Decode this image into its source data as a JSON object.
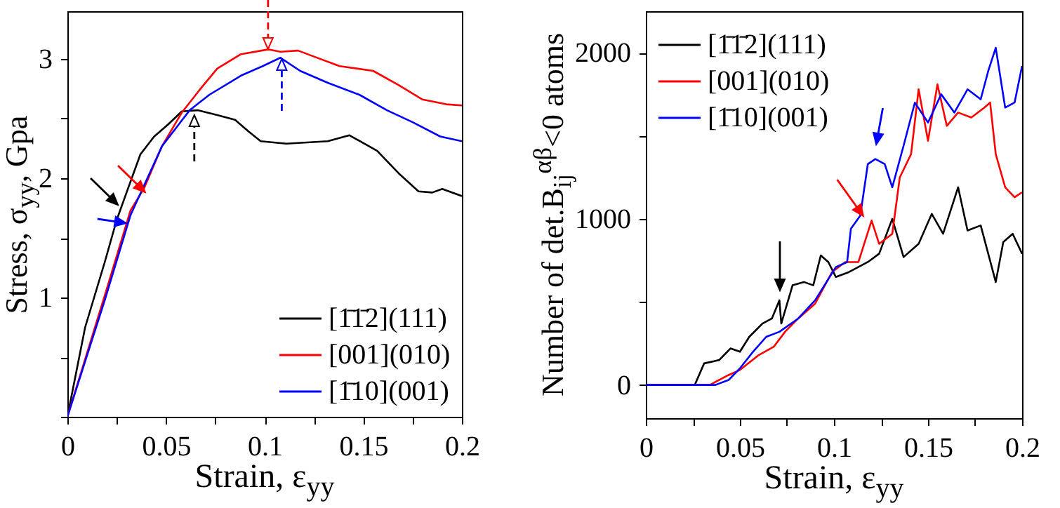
{
  "chart_data": [
    {
      "type": "line",
      "xlabel": "Strain, ε$_{yy}$",
      "ylabel": "Stress, σ$_{yy}$, Gpa",
      "xlim": [
        0,
        0.2
      ],
      "ylim": [
        0,
        3.4
      ],
      "xticks": [
        0,
        {
          "value": 0.025,
          "label": null
        },
        0.05,
        {
          "value": 0.075,
          "label": null
        },
        0.1,
        {
          "value": 0.125,
          "label": null
        },
        0.15,
        {
          "value": 0.175,
          "label": null
        },
        0.2
      ],
      "yticks": [
        {
          "value": 0,
          "label": null
        },
        {
          "value": 0.5,
          "label": null
        },
        1,
        {
          "value": 1.5,
          "label": null
        },
        2,
        {
          "value": 2.5,
          "label": null
        },
        3
      ],
      "grid": false,
      "legend": "bottom right",
      "marker": "none",
      "line_style": "solid",
      "series": [
        {
          "name": "[1̄1̄2](111)",
          "color": "#000000",
          "x": [
            0,
            0.009,
            0.019,
            0.025,
            0.03,
            0.037,
            0.044,
            0.051,
            0.058,
            0.066,
            0.076,
            0.085,
            0.092,
            0.098,
            0.111,
            0.132,
            0.143,
            0.157,
            0.168,
            0.178,
            0.185,
            0.19,
            0.2
          ],
          "values": [
            0,
            0.75,
            1.3,
            1.65,
            1.88,
            2.2,
            2.35,
            2.45,
            2.56,
            2.57,
            2.53,
            2.49,
            2.39,
            2.31,
            2.29,
            2.31,
            2.36,
            2.23,
            2.04,
            1.89,
            1.88,
            1.91,
            1.85
          ]
        },
        {
          "name": "[001](010)",
          "color": "#ff0000",
          "x": [
            0,
            0.019,
            0.032,
            0.039,
            0.048,
            0.058,
            0.067,
            0.076,
            0.088,
            0.102,
            0.108,
            0.117,
            0.125,
            0.138,
            0.155,
            0.168,
            0.18,
            0.192,
            0.2
          ],
          "values": [
            0,
            1.02,
            1.73,
            1.92,
            2.27,
            2.55,
            2.74,
            2.92,
            3.04,
            3.08,
            3.06,
            3.07,
            3.02,
            2.94,
            2.9,
            2.78,
            2.66,
            2.62,
            2.61
          ]
        },
        {
          "name": "[1̄10](001)",
          "color": "#0000ff",
          "x": [
            0,
            0.019,
            0.032,
            0.048,
            0.062,
            0.072,
            0.088,
            0.099,
            0.108,
            0.118,
            0.132,
            0.148,
            0.162,
            0.175,
            0.189,
            0.2
          ],
          "values": [
            0,
            0.98,
            1.69,
            2.27,
            2.57,
            2.7,
            2.86,
            2.94,
            3.01,
            2.9,
            2.8,
            2.7,
            2.57,
            2.47,
            2.35,
            2.31
          ]
        }
      ]
    },
    {
      "type": "line",
      "xlabel": "Strain, ε$_{yy}$",
      "ylabel": "Number of det.B$_{ij}$$^{αβ}$<0 atoms",
      "xlim": [
        0,
        0.2
      ],
      "ylim": [
        -200,
        2250
      ],
      "xticks": [
        0,
        {
          "value": 0.025,
          "label": null
        },
        0.05,
        {
          "value": 0.075,
          "label": null
        },
        0.1,
        {
          "value": 0.125,
          "label": null
        },
        0.15,
        {
          "value": 0.175,
          "label": null
        },
        0.2
      ],
      "yticks": [
        0,
        {
          "value": 500,
          "label": null
        },
        1000,
        {
          "value": 1500,
          "label": null
        },
        2000
      ],
      "grid": false,
      "legend": "top left",
      "marker": "none",
      "line_style": "solid",
      "series": [
        {
          "name": "[1̄1̄2](111)",
          "color": "#000000",
          "x": [
            0,
            0.026,
            0.031,
            0.039,
            0.045,
            0.05,
            0.055,
            0.062,
            0.067,
            0.071,
            0.072,
            0.078,
            0.084,
            0.089,
            0.093,
            0.097,
            0.101,
            0.108,
            0.118,
            0.124,
            0.131,
            0.137,
            0.145,
            0.152,
            0.158,
            0.166,
            0.171,
            0.178,
            0.182,
            0.186,
            0.19,
            0.195,
            0.2
          ],
          "values": [
            0,
            0,
            130,
            150,
            220,
            200,
            290,
            370,
            400,
            510,
            370,
            600,
            620,
            600,
            780,
            740,
            650,
            680,
            740,
            790,
            1000,
            770,
            850,
            1030,
            910,
            1190,
            930,
            960,
            790,
            620,
            860,
            910,
            790
          ]
        },
        {
          "name": "[001](010)",
          "color": "#ff0000",
          "x": [
            0,
            0.034,
            0.044,
            0.05,
            0.06,
            0.068,
            0.074,
            0.081,
            0.09,
            0.099,
            0.106,
            0.113,
            0.12,
            0.124,
            0.131,
            0.135,
            0.141,
            0.145,
            0.15,
            0.155,
            0.16,
            0.166,
            0.173,
            0.18,
            0.183,
            0.186,
            0.191,
            0.196,
            0.2
          ],
          "values": [
            0,
            0,
            60,
            90,
            180,
            230,
            320,
            400,
            490,
            680,
            740,
            740,
            990,
            850,
            910,
            1250,
            1390,
            1780,
            1470,
            1810,
            1560,
            1640,
            1610,
            1670,
            1700,
            1390,
            1190,
            1130,
            1160
          ]
        },
        {
          "name": "[1̄10](001)",
          "color": "#0000ff",
          "x": [
            0,
            0.037,
            0.044,
            0.05,
            0.057,
            0.064,
            0.071,
            0.081,
            0.09,
            0.101,
            0.107,
            0.109,
            0.114,
            0.118,
            0.122,
            0.127,
            0.131,
            0.137,
            0.143,
            0.15,
            0.157,
            0.164,
            0.171,
            0.178,
            0.182,
            0.186,
            0.191,
            0.196,
            0.2
          ],
          "values": [
            0,
            0,
            30,
            100,
            200,
            290,
            320,
            400,
            510,
            710,
            740,
            940,
            1020,
            1330,
            1360,
            1330,
            1190,
            1440,
            1700,
            1580,
            1750,
            1640,
            1780,
            1720,
            1890,
            2030,
            1670,
            1700,
            1920
          ]
        }
      ]
    }
  ]
}
